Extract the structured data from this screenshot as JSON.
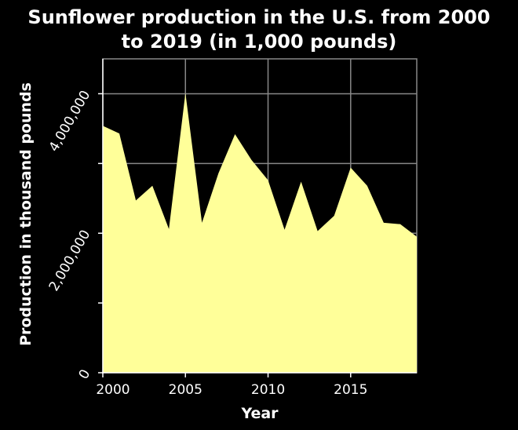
{
  "chart_data": {
    "type": "area",
    "title_lines": [
      "Sunflower production in the U.S. from 2000",
      "to 2019 (in 1,000 pounds)"
    ],
    "xlabel": "Year",
    "ylabel": "Production in thousand pounds",
    "x": [
      2000,
      2001,
      2002,
      2003,
      2004,
      2005,
      2006,
      2007,
      2008,
      2009,
      2010,
      2011,
      2012,
      2013,
      2014,
      2015,
      2016,
      2017,
      2018,
      2019
    ],
    "values": [
      3540000,
      3430000,
      2470000,
      2680000,
      2060000,
      4010000,
      2150000,
      2860000,
      3420000,
      3050000,
      2760000,
      2050000,
      2740000,
      2030000,
      2250000,
      2940000,
      2680000,
      2150000,
      2130000,
      1950000
    ],
    "xlim": [
      2000,
      2019
    ],
    "ylim": [
      0,
      4500000
    ],
    "xticks": [
      2000,
      2005,
      2010,
      2015
    ],
    "xtick_labels": [
      "2000",
      "2005",
      "2010",
      "2015"
    ],
    "yticks": [
      0,
      1000000,
      2000000,
      3000000,
      4000000
    ],
    "ytick_labels": [
      "0",
      "",
      "2,000,000",
      "",
      "4,000,000"
    ],
    "grid": true,
    "colors": {
      "background": "#000000",
      "fill": "#ffff99",
      "grid": "#888888",
      "text": "#ffffff"
    }
  }
}
